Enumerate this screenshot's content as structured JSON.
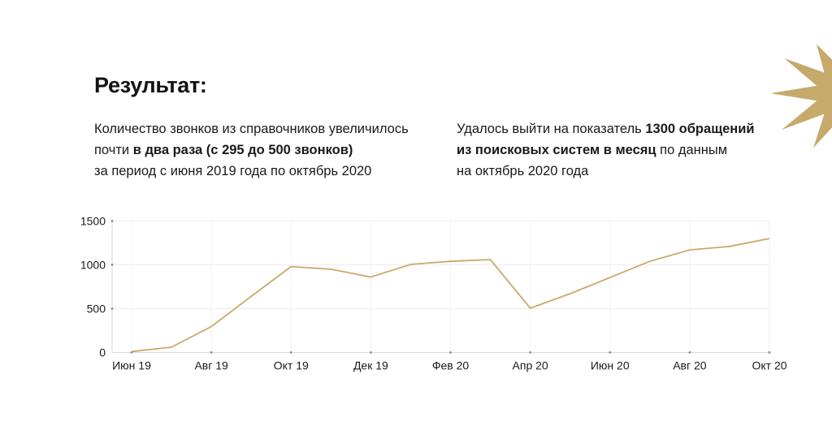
{
  "heading": {
    "title": "Результат:"
  },
  "columns": {
    "left": {
      "line1": "Количество звонков из справочников увеличилось",
      "line2_regular": "почти ",
      "line2_bold": "в два раза (с 295 до 500 звонков)",
      "line3": "за период с июня 2019 года по октябрь 2020"
    },
    "right": {
      "line1_regular": "Удалось выйти на показатель ",
      "line1_bold": "1300 обращений",
      "line2_bold": "из поисковых систем в месяц",
      "line2_regular": " по данным",
      "line3": "на октябрь 2020 года"
    }
  },
  "decoration": {
    "starburst_color": "#c6aa6b"
  },
  "colors": {
    "line": "#c9a96b",
    "grid_horizontal": "#ededed",
    "grid_vertical": "#f2f2f2",
    "axis": "#d9d9d9",
    "tick_dot": "#8a8a8a",
    "tick_text": "#1a1a1a"
  },
  "chart_data": {
    "type": "line",
    "title": "",
    "xlabel": "",
    "ylabel": "",
    "x": [
      "Июн 19",
      "Июл 19",
      "Авг 19",
      "Сен 19",
      "Окт 19",
      "Ноя 19",
      "Дек 19",
      "Янв 20",
      "Фев 20",
      "Мар 20",
      "Апр 20",
      "Май 20",
      "Июн 20",
      "Июл 20",
      "Авг 20",
      "Сен 20",
      "Окт 20"
    ],
    "values": [
      10,
      60,
      295,
      640,
      980,
      950,
      860,
      1005,
      1040,
      1060,
      505,
      670,
      855,
      1040,
      1170,
      1210,
      1300
    ],
    "x_tick_labels": [
      "Июн 19",
      "Авг 19",
      "Окт 19",
      "Дек 19",
      "Фев 20",
      "Апр 20",
      "Июн 20",
      "Авг 20",
      "Окт 20"
    ],
    "y_ticks": [
      0,
      500,
      1000,
      1500
    ],
    "ylim": [
      0,
      1500
    ],
    "grid": true,
    "legend": "none"
  }
}
